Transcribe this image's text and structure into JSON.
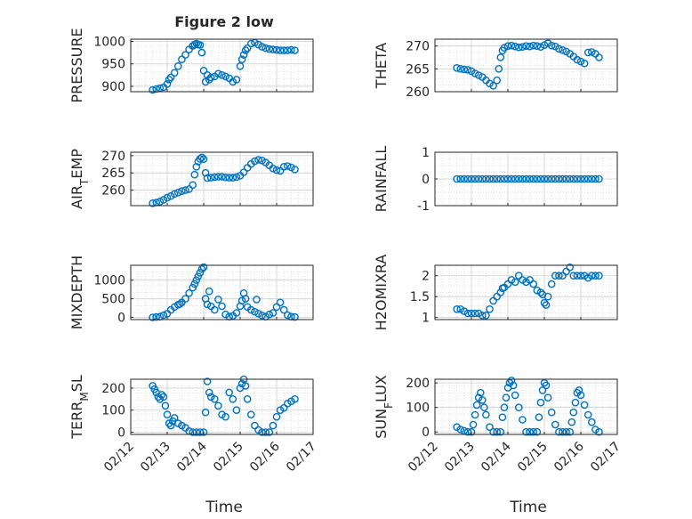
{
  "figure_title": "Figure 2 low",
  "x_axis_label": "Time",
  "x_tick_labels": [
    "02/12",
    "02/13",
    "02/14",
    "02/15",
    "02/16",
    "02/17"
  ],
  "marker_color": "#0072BD",
  "chart_data": [
    {
      "type": "scatter",
      "ylabel": "PRESSURE",
      "ylabel_sub": "",
      "ylim": [
        888,
        1005
      ],
      "yticks": [
        900,
        950,
        1000
      ],
      "xlim": [
        0,
        5
      ],
      "x": [
        0.6,
        0.7,
        0.8,
        0.9,
        1.0,
        1.05,
        1.1,
        1.2,
        1.3,
        1.4,
        1.5,
        1.6,
        1.7,
        1.75,
        1.8,
        1.85,
        1.9,
        1.95,
        2.0,
        2.05,
        2.1,
        2.15,
        2.2,
        2.3,
        2.4,
        2.5,
        2.6,
        2.7,
        2.8,
        2.9,
        3.0,
        3.05,
        3.1,
        3.15,
        3.2,
        3.3,
        3.4,
        3.5,
        3.6,
        3.7,
        3.8,
        3.9,
        4.0,
        4.1,
        4.2,
        4.3,
        4.4,
        4.5
      ],
      "y": [
        892,
        894,
        896,
        898,
        905,
        915,
        920,
        930,
        945,
        960,
        970,
        982,
        990,
        993,
        995,
        993,
        992,
        975,
        935,
        910,
        925,
        915,
        920,
        922,
        928,
        925,
        922,
        918,
        910,
        915,
        945,
        960,
        970,
        980,
        985,
        995,
        997,
        993,
        988,
        985,
        983,
        982,
        981,
        980,
        980,
        980,
        981,
        980
      ]
    },
    {
      "type": "scatter",
      "ylabel": "THETA",
      "ylabel_sub": "",
      "ylim": [
        260,
        271.5
      ],
      "yticks": [
        260,
        265,
        270
      ],
      "xlim": [
        0,
        5
      ],
      "x": [
        0.6,
        0.7,
        0.8,
        0.9,
        1.0,
        1.1,
        1.2,
        1.3,
        1.4,
        1.5,
        1.6,
        1.7,
        1.75,
        1.8,
        1.85,
        1.9,
        2.0,
        2.1,
        2.2,
        2.3,
        2.4,
        2.5,
        2.6,
        2.7,
        2.8,
        2.9,
        3.0,
        3.1,
        3.2,
        3.3,
        3.4,
        3.5,
        3.6,
        3.7,
        3.8,
        3.9,
        4.0,
        4.1,
        4.2,
        4.3,
        4.4,
        4.5
      ],
      "y": [
        265.2,
        265.0,
        264.9,
        264.8,
        264.5,
        264.0,
        263.6,
        263.2,
        262.5,
        261.8,
        261.3,
        262.5,
        265.0,
        267.5,
        269.0,
        269.6,
        270.0,
        270.1,
        269.9,
        269.7,
        269.8,
        270.0,
        269.9,
        270.1,
        270.0,
        269.8,
        270.2,
        270.6,
        270.1,
        269.9,
        269.4,
        269.1,
        268.8,
        268.3,
        267.7,
        267.0,
        266.6,
        266.2,
        268.6,
        268.7,
        268.3,
        267.5
      ]
    },
    {
      "type": "scatter",
      "ylabel": "AIR",
      "ylabel_sub": "T",
      "ylabel_post": "EMP",
      "ylim": [
        255.5,
        271
      ],
      "yticks": [
        260,
        265,
        270
      ],
      "xlim": [
        0,
        5
      ],
      "x": [
        0.6,
        0.7,
        0.8,
        0.9,
        1.0,
        1.1,
        1.2,
        1.3,
        1.4,
        1.5,
        1.6,
        1.7,
        1.75,
        1.8,
        1.85,
        1.9,
        1.95,
        2.0,
        2.05,
        2.1,
        2.2,
        2.3,
        2.4,
        2.5,
        2.6,
        2.7,
        2.8,
        2.9,
        3.0,
        3.1,
        3.2,
        3.3,
        3.4,
        3.5,
        3.6,
        3.7,
        3.8,
        3.9,
        4.0,
        4.1,
        4.2,
        4.3,
        4.4,
        4.5
      ],
      "y": [
        256.2,
        256.4,
        256.7,
        257.2,
        257.8,
        258.3,
        258.9,
        259.3,
        259.7,
        260.0,
        260.3,
        261.5,
        264.5,
        266.8,
        268.3,
        269.1,
        269.5,
        269.0,
        265.0,
        263.5,
        263.6,
        263.8,
        263.9,
        263.9,
        263.7,
        263.6,
        263.6,
        263.8,
        264.2,
        265.2,
        266.5,
        267.6,
        268.4,
        268.8,
        268.6,
        268.0,
        267.2,
        266.3,
        265.8,
        265.6,
        266.8,
        267.0,
        266.6,
        266.0
      ]
    },
    {
      "type": "scatter",
      "ylabel": "RAINFALL",
      "ylabel_sub": "",
      "ylim": [
        -1,
        1
      ],
      "yticks": [
        -1,
        0,
        1
      ],
      "xlim": [
        0,
        5
      ],
      "x": [
        0.6,
        0.7,
        0.8,
        0.9,
        1.0,
        1.1,
        1.2,
        1.3,
        1.4,
        1.5,
        1.6,
        1.7,
        1.8,
        1.9,
        2.0,
        2.1,
        2.2,
        2.3,
        2.4,
        2.5,
        2.6,
        2.7,
        2.8,
        2.9,
        3.0,
        3.1,
        3.2,
        3.3,
        3.4,
        3.5,
        3.6,
        3.7,
        3.8,
        3.9,
        4.0,
        4.1,
        4.2,
        4.3,
        4.4,
        4.5
      ],
      "y": [
        0,
        0,
        0,
        0,
        0,
        0,
        0,
        0,
        0,
        0,
        0,
        0,
        0,
        0,
        0,
        0,
        0,
        0,
        0,
        0,
        0,
        0,
        0,
        0,
        0,
        0,
        0,
        0,
        0,
        0,
        0,
        0,
        0,
        0,
        0,
        0,
        0,
        0,
        0,
        0
      ]
    },
    {
      "type": "scatter",
      "ylabel": "MIXDEPTH",
      "ylabel_sub": "",
      "ylim": [
        -60,
        1400
      ],
      "yticks": [
        0,
        500,
        1000
      ],
      "xlim": [
        0,
        5
      ],
      "x": [
        0.6,
        0.7,
        0.8,
        0.9,
        1.0,
        1.1,
        1.2,
        1.3,
        1.35,
        1.4,
        1.5,
        1.6,
        1.7,
        1.75,
        1.8,
        1.85,
        1.9,
        1.95,
        2.0,
        2.05,
        2.1,
        2.15,
        2.2,
        2.3,
        2.4,
        2.5,
        2.6,
        2.7,
        2.8,
        2.9,
        3.0,
        3.05,
        3.1,
        3.15,
        3.2,
        3.3,
        3.4,
        3.45,
        3.5,
        3.6,
        3.7,
        3.8,
        3.9,
        4.0,
        4.1,
        4.2,
        4.3,
        4.4,
        4.5
      ],
      "y": [
        0,
        10,
        20,
        60,
        100,
        200,
        280,
        340,
        360,
        400,
        500,
        650,
        800,
        900,
        1000,
        1100,
        1200,
        1300,
        1350,
        500,
        350,
        700,
        300,
        200,
        480,
        300,
        80,
        20,
        40,
        120,
        300,
        450,
        650,
        500,
        280,
        200,
        150,
        480,
        100,
        50,
        20,
        80,
        120,
        280,
        400,
        200,
        60,
        20,
        10
      ]
    },
    {
      "type": "scatter",
      "ylabel": "H2OMIXRA",
      "ylabel_sub": "",
      "ylim": [
        0.95,
        2.25
      ],
      "yticks": [
        1,
        1.5,
        2
      ],
      "xlim": [
        0,
        5
      ],
      "x": [
        0.6,
        0.7,
        0.8,
        0.9,
        1.0,
        1.1,
        1.2,
        1.3,
        1.4,
        1.5,
        1.6,
        1.7,
        1.8,
        1.85,
        1.9,
        2.0,
        2.1,
        2.2,
        2.3,
        2.4,
        2.5,
        2.6,
        2.7,
        2.8,
        2.9,
        2.95,
        3.0,
        3.05,
        3.1,
        3.2,
        3.3,
        3.4,
        3.5,
        3.6,
        3.7,
        3.8,
        3.9,
        4.0,
        4.1,
        4.2,
        4.3,
        4.4,
        4.5
      ],
      "y": [
        1.2,
        1.2,
        1.15,
        1.1,
        1.1,
        1.1,
        1.1,
        1.05,
        1.05,
        1.2,
        1.4,
        1.5,
        1.6,
        1.7,
        1.72,
        1.8,
        1.9,
        1.85,
        2.0,
        1.9,
        1.85,
        1.9,
        1.8,
        1.65,
        1.6,
        1.55,
        1.35,
        1.3,
        1.5,
        1.8,
        2.0,
        2.0,
        2.0,
        2.1,
        2.2,
        2.0,
        2.0,
        2.0,
        2.0,
        1.95,
        2.0,
        2.0,
        2.0
      ]
    },
    {
      "type": "scatter",
      "ylabel": "TERR",
      "ylabel_sub": "M",
      "ylabel_post": "SL",
      "ylim": [
        -10,
        240
      ],
      "yticks": [
        0,
        100,
        200
      ],
      "xlim": [
        0,
        5
      ],
      "x": [
        0.6,
        0.65,
        0.7,
        0.75,
        0.8,
        0.85,
        0.9,
        0.95,
        1.0,
        1.05,
        1.1,
        1.15,
        1.2,
        1.3,
        1.4,
        1.5,
        1.6,
        1.7,
        1.8,
        1.9,
        2.0,
        2.05,
        2.1,
        2.15,
        2.2,
        2.3,
        2.4,
        2.5,
        2.6,
        2.7,
        2.8,
        2.9,
        3.0,
        3.05,
        3.1,
        3.15,
        3.2,
        3.3,
        3.4,
        3.5,
        3.6,
        3.7,
        3.8,
        3.9,
        4.0,
        4.1,
        4.2,
        4.3,
        4.4,
        4.5
      ],
      "y": [
        210,
        195,
        180,
        160,
        150,
        170,
        160,
        120,
        80,
        40,
        30,
        50,
        65,
        40,
        30,
        20,
        5,
        0,
        0,
        0,
        0,
        90,
        230,
        180,
        160,
        150,
        120,
        80,
        70,
        180,
        150,
        100,
        200,
        220,
        240,
        210,
        150,
        80,
        30,
        10,
        0,
        0,
        0,
        30,
        70,
        100,
        110,
        130,
        140,
        150
      ]
    },
    {
      "type": "scatter",
      "ylabel": "SUN",
      "ylabel_sub": "F",
      "ylabel_post": "LUX",
      "ylim": [
        -10,
        215
      ],
      "yticks": [
        0,
        100,
        200
      ],
      "xlim": [
        0,
        5
      ],
      "x": [
        0.6,
        0.7,
        0.8,
        0.9,
        1.0,
        1.05,
        1.1,
        1.15,
        1.2,
        1.25,
        1.3,
        1.35,
        1.4,
        1.5,
        1.6,
        1.7,
        1.8,
        1.85,
        1.9,
        1.95,
        2.0,
        2.05,
        2.1,
        2.15,
        2.2,
        2.3,
        2.4,
        2.5,
        2.6,
        2.7,
        2.8,
        2.85,
        2.9,
        2.95,
        3.0,
        3.05,
        3.1,
        3.2,
        3.3,
        3.4,
        3.5,
        3.6,
        3.7,
        3.75,
        3.8,
        3.85,
        3.9,
        3.95,
        4.0,
        4.1,
        4.2,
        4.3,
        4.4,
        4.5
      ],
      "y": [
        20,
        10,
        5,
        0,
        0,
        30,
        70,
        110,
        140,
        160,
        130,
        100,
        70,
        20,
        0,
        0,
        0,
        60,
        100,
        140,
        180,
        200,
        210,
        190,
        150,
        100,
        50,
        0,
        0,
        0,
        0,
        60,
        120,
        170,
        200,
        190,
        140,
        80,
        30,
        0,
        0,
        0,
        0,
        40,
        80,
        120,
        160,
        170,
        150,
        110,
        70,
        40,
        10,
        0
      ]
    }
  ]
}
